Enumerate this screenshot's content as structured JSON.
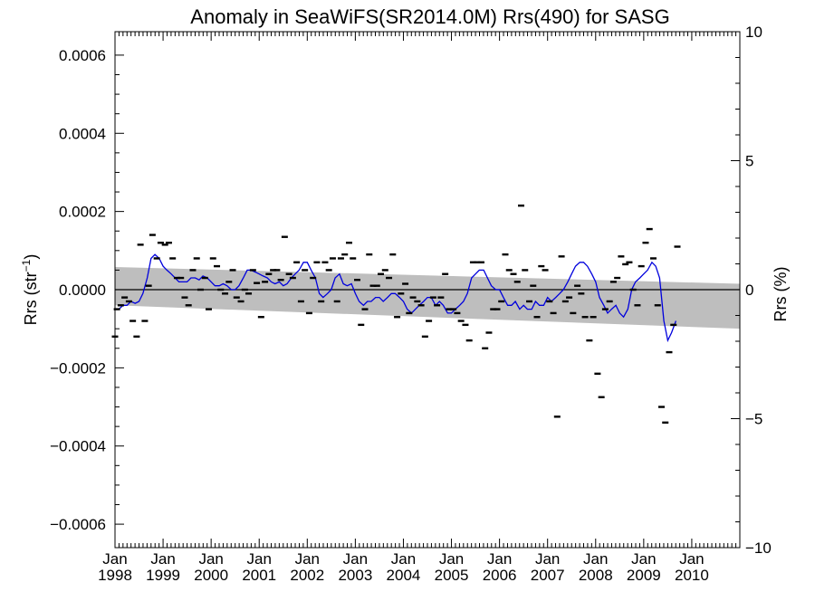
{
  "chart_data": {
    "type": "scatter",
    "title": "Anomaly in SeaWiFS(SR2014.0M) Rrs(490) for SASG",
    "ylabel_left": {
      "main": "Rrs (str",
      "sup": "−1",
      "close": ")"
    },
    "ylabel_right": "Rrs (%)",
    "xlim": [
      1998.0,
      2011.0
    ],
    "ylim_left": [
      -0.00066,
      0.00066
    ],
    "ylim_right": [
      -10,
      10
    ],
    "left_ticks": [
      {
        "value": 0.0006,
        "label": "0.0006"
      },
      {
        "value": 0.0004,
        "label": "0.0004"
      },
      {
        "value": 0.0002,
        "label": "0.0002"
      },
      {
        "value": 0.0,
        "label": "0.0000"
      },
      {
        "value": -0.0002,
        "label": "−0.0002"
      },
      {
        "value": -0.0004,
        "label": "−0.0004"
      },
      {
        "value": -0.0006,
        "label": "−0.0006"
      }
    ],
    "right_ticks": [
      {
        "value": 10,
        "label": "10"
      },
      {
        "value": 5,
        "label": "5"
      },
      {
        "value": 0,
        "label": "0"
      },
      {
        "value": -5,
        "label": "−5"
      },
      {
        "value": -10,
        "label": "−10"
      }
    ],
    "x_ticks": [
      {
        "value": 1998,
        "month": "Jan",
        "year": "1998"
      },
      {
        "value": 1999,
        "month": "Jan",
        "year": "1999"
      },
      {
        "value": 2000,
        "month": "Jan",
        "year": "2000"
      },
      {
        "value": 2001,
        "month": "Jan",
        "year": "2001"
      },
      {
        "value": 2002,
        "month": "Jan",
        "year": "2002"
      },
      {
        "value": 2003,
        "month": "Jan",
        "year": "2003"
      },
      {
        "value": 2004,
        "month": "Jan",
        "year": "2004"
      },
      {
        "value": 2005,
        "month": "Jan",
        "year": "2005"
      },
      {
        "value": 2006,
        "month": "Jan",
        "year": "2006"
      },
      {
        "value": 2007,
        "month": "Jan",
        "year": "2007"
      },
      {
        "value": 2008,
        "month": "Jan",
        "year": "2008"
      },
      {
        "value": 2009,
        "month": "Jan",
        "year": "2009"
      },
      {
        "value": 2010,
        "month": "Jan",
        "year": "2010"
      }
    ],
    "trend_band": {
      "x": [
        1998.0,
        2011.0
      ],
      "upper": [
        5.8e-05,
        1.5e-05
      ],
      "lower": [
        -4e-05,
        -0.0001
      ],
      "color": "#bebebe"
    },
    "zero_line": 0.0,
    "monthly_anomaly": {
      "color": "#000000",
      "marker": "short horizontal bar",
      "points": [
        [
          1998.0,
          -0.00012
        ],
        [
          1998.04,
          -5e-05
        ],
        [
          1998.12,
          -4e-05
        ],
        [
          1998.2,
          -2e-05
        ],
        [
          1998.29,
          -3e-05
        ],
        [
          1998.37,
          -8e-05
        ],
        [
          1998.45,
          -0.00012
        ],
        [
          1998.53,
          0.000115
        ],
        [
          1998.62,
          -8e-05
        ],
        [
          1998.7,
          1e-05
        ],
        [
          1998.78,
          0.00014
        ],
        [
          1998.87,
          8e-05
        ],
        [
          1998.95,
          0.00012
        ],
        [
          1999.04,
          0.000115
        ],
        [
          1999.12,
          0.00012
        ],
        [
          1999.2,
          8e-05
        ],
        [
          1999.29,
          3e-05
        ],
        [
          1999.37,
          3e-05
        ],
        [
          1999.45,
          -2e-05
        ],
        [
          1999.53,
          -4e-05
        ],
        [
          1999.62,
          5e-05
        ],
        [
          1999.7,
          8e-05
        ],
        [
          1999.78,
          0.0
        ],
        [
          1999.87,
          3e-05
        ],
        [
          1999.95,
          -5e-05
        ],
        [
          2000.04,
          8e-05
        ],
        [
          2000.12,
          6e-05
        ],
        [
          2000.2,
          0.0
        ],
        [
          2000.29,
          -1e-05
        ],
        [
          2000.37,
          2e-05
        ],
        [
          2000.45,
          5e-05
        ],
        [
          2000.53,
          -2e-05
        ],
        [
          2000.62,
          -3e-05
        ],
        [
          2000.7,
          0.0
        ],
        [
          2000.78,
          -1e-05
        ],
        [
          2000.87,
          5e-05
        ],
        [
          2000.95,
          1.7e-05
        ],
        [
          2001.04,
          -7e-05
        ],
        [
          2001.12,
          2e-05
        ],
        [
          2001.2,
          4e-05
        ],
        [
          2001.29,
          5e-05
        ],
        [
          2001.37,
          5e-05
        ],
        [
          2001.45,
          2.5e-05
        ],
        [
          2001.53,
          0.000135
        ],
        [
          2001.62,
          4e-05
        ],
        [
          2001.7,
          3e-05
        ],
        [
          2001.78,
          7e-05
        ],
        [
          2001.87,
          -3e-05
        ],
        [
          2001.95,
          5e-05
        ],
        [
          2002.04,
          -6e-05
        ],
        [
          2002.12,
          3e-05
        ],
        [
          2002.2,
          7e-05
        ],
        [
          2002.29,
          -3e-05
        ],
        [
          2002.37,
          7e-05
        ],
        [
          2002.45,
          5e-05
        ],
        [
          2002.53,
          8e-05
        ],
        [
          2002.62,
          -3e-05
        ],
        [
          2002.7,
          8e-05
        ],
        [
          2002.78,
          9e-05
        ],
        [
          2002.87,
          0.00012
        ],
        [
          2002.95,
          8e-05
        ],
        [
          2003.04,
          2.5e-05
        ],
        [
          2003.12,
          -9e-05
        ],
        [
          2003.2,
          -5e-05
        ],
        [
          2003.29,
          9e-05
        ],
        [
          2003.37,
          1e-05
        ],
        [
          2003.45,
          1e-05
        ],
        [
          2003.53,
          4e-05
        ],
        [
          2003.62,
          5e-05
        ],
        [
          2003.7,
          3e-05
        ],
        [
          2003.78,
          9e-05
        ],
        [
          2003.87,
          -7e-05
        ],
        [
          2003.95,
          -1e-05
        ],
        [
          2004.04,
          1.5e-05
        ],
        [
          2004.12,
          -6e-05
        ],
        [
          2004.2,
          -2e-05
        ],
        [
          2004.29,
          -3e-05
        ],
        [
          2004.37,
          -4e-05
        ],
        [
          2004.45,
          -0.00012
        ],
        [
          2004.53,
          -8e-05
        ],
        [
          2004.62,
          -2e-05
        ],
        [
          2004.7,
          -4e-05
        ],
        [
          2004.78,
          -2e-05
        ],
        [
          2004.87,
          4e-05
        ],
        [
          2004.95,
          -5e-05
        ],
        [
          2005.04,
          -5e-05
        ],
        [
          2005.12,
          -6e-05
        ],
        [
          2005.2,
          -8e-05
        ],
        [
          2005.29,
          -9e-05
        ],
        [
          2005.37,
          -0.00013
        ],
        [
          2005.45,
          7e-05
        ],
        [
          2005.53,
          7e-05
        ],
        [
          2005.62,
          7e-05
        ],
        [
          2005.7,
          -0.00015
        ],
        [
          2005.78,
          -0.00011
        ],
        [
          2005.87,
          -5e-05
        ],
        [
          2005.95,
          -5e-05
        ],
        [
          2006.04,
          -3e-05
        ],
        [
          2006.12,
          9e-05
        ],
        [
          2006.2,
          5e-05
        ],
        [
          2006.29,
          4e-05
        ],
        [
          2006.37,
          2e-05
        ],
        [
          2006.45,
          0.000215
        ],
        [
          2006.53,
          5e-05
        ],
        [
          2006.62,
          -3e-05
        ],
        [
          2006.7,
          1e-05
        ],
        [
          2006.78,
          -7e-05
        ],
        [
          2006.87,
          6e-05
        ],
        [
          2006.95,
          5e-05
        ],
        [
          2007.04,
          -3e-05
        ],
        [
          2007.12,
          -6e-05
        ],
        [
          2007.2,
          -0.000325
        ],
        [
          2007.29,
          8.5e-05
        ],
        [
          2007.37,
          -3e-05
        ],
        [
          2007.45,
          -2e-05
        ],
        [
          2007.53,
          -6e-05
        ],
        [
          2007.62,
          1e-05
        ],
        [
          2007.7,
          -1e-05
        ],
        [
          2007.78,
          -7e-05
        ],
        [
          2007.87,
          -0.00013
        ],
        [
          2007.95,
          -7e-05
        ],
        [
          2008.04,
          -0.000215
        ],
        [
          2008.12,
          -0.000275
        ],
        [
          2008.2,
          -5e-05
        ],
        [
          2008.29,
          -3e-05
        ],
        [
          2008.37,
          2e-05
        ],
        [
          2008.45,
          3e-05
        ],
        [
          2008.53,
          8.5e-05
        ],
        [
          2008.62,
          6.5e-05
        ],
        [
          2008.7,
          7e-05
        ],
        [
          2008.78,
          0.0
        ],
        [
          2008.87,
          -4e-05
        ],
        [
          2008.95,
          6e-05
        ],
        [
          2009.04,
          0.00012
        ],
        [
          2009.12,
          0.000155
        ],
        [
          2009.2,
          8e-05
        ],
        [
          2009.29,
          -4e-05
        ],
        [
          2009.37,
          -0.0003
        ],
        [
          2009.45,
          -0.00034
        ],
        [
          2009.53,
          -0.00016
        ],
        [
          2009.62,
          -9e-05
        ],
        [
          2009.7,
          0.00011
        ]
      ]
    },
    "running_mean": {
      "color": "#0000dd",
      "x": [
        1998.0,
        1998.08,
        1998.17,
        1998.25,
        1998.33,
        1998.42,
        1998.5,
        1998.58,
        1998.67,
        1998.75,
        1998.83,
        1998.92,
        1999.0,
        1999.08,
        1999.17,
        1999.25,
        1999.33,
        1999.42,
        1999.5,
        1999.58,
        1999.67,
        1999.75,
        1999.83,
        1999.92,
        2000.0,
        2000.08,
        2000.17,
        2000.25,
        2000.33,
        2000.42,
        2000.5,
        2000.58,
        2000.67,
        2000.75,
        2000.83,
        2000.92,
        2001.0,
        2001.08,
        2001.17,
        2001.25,
        2001.33,
        2001.42,
        2001.5,
        2001.58,
        2001.67,
        2001.75,
        2001.83,
        2001.92,
        2002.0,
        2002.08,
        2002.17,
        2002.25,
        2002.33,
        2002.42,
        2002.5,
        2002.58,
        2002.67,
        2002.75,
        2002.83,
        2002.92,
        2003.0,
        2003.08,
        2003.17,
        2003.25,
        2003.33,
        2003.42,
        2003.5,
        2003.58,
        2003.67,
        2003.75,
        2003.83,
        2003.92,
        2004.0,
        2004.08,
        2004.17,
        2004.25,
        2004.33,
        2004.42,
        2004.5,
        2004.58,
        2004.67,
        2004.75,
        2004.83,
        2004.92,
        2005.0,
        2005.08,
        2005.17,
        2005.25,
        2005.33,
        2005.42,
        2005.5,
        2005.58,
        2005.67,
        2005.75,
        2005.83,
        2005.92,
        2006.0,
        2006.08,
        2006.17,
        2006.25,
        2006.33,
        2006.42,
        2006.5,
        2006.58,
        2006.67,
        2006.75,
        2006.83,
        2006.92,
        2007.0,
        2007.08,
        2007.17,
        2007.25,
        2007.33,
        2007.42,
        2007.5,
        2007.58,
        2007.67,
        2007.75,
        2007.83,
        2007.92,
        2008.0,
        2008.08,
        2008.17,
        2008.25,
        2008.33,
        2008.42,
        2008.5,
        2008.58,
        2008.67,
        2008.75,
        2008.83,
        2008.92,
        2009.0,
        2009.08,
        2009.17,
        2009.25,
        2009.33,
        2009.42,
        2009.5,
        2009.58,
        2009.67
      ],
      "y": [
        -5e-05,
        -5e-05,
        -4e-05,
        -4e-05,
        -3e-05,
        -3.5e-05,
        -3e-05,
        -1e-05,
        3e-05,
        8e-05,
        9e-05,
        8e-05,
        6e-05,
        5e-05,
        4e-05,
        3e-05,
        2e-05,
        2e-05,
        2e-05,
        3e-05,
        3e-05,
        2.5e-05,
        3.5e-05,
        3e-05,
        2e-05,
        1e-05,
        1e-05,
        1.5e-05,
        1e-05,
        0.0,
        0.0,
        1e-05,
        3e-05,
        5e-05,
        5e-05,
        4.5e-05,
        4e-05,
        3.5e-05,
        3e-05,
        2e-05,
        1.5e-05,
        2e-05,
        1e-05,
        1.5e-05,
        3e-05,
        4e-05,
        5e-05,
        7e-05,
        7e-05,
        5e-05,
        3e-05,
        -1e-05,
        -2e-05,
        -1e-05,
        0.0,
        3e-05,
        4e-05,
        1.5e-05,
        1e-05,
        1.5e-05,
        -1e-05,
        -3e-05,
        -4e-05,
        -3e-05,
        -3e-05,
        -2e-05,
        -2e-05,
        -3e-05,
        -2e-05,
        -1e-05,
        -1e-05,
        -2e-05,
        -3e-05,
        -5e-05,
        -6e-05,
        -5e-05,
        -4e-05,
        -3e-05,
        -2e-05,
        -2e-05,
        -4e-05,
        -3e-05,
        -4e-05,
        -6e-05,
        -6e-05,
        -5e-05,
        -4e-05,
        -3e-05,
        -1e-05,
        3e-05,
        4e-05,
        5e-05,
        5e-05,
        3e-05,
        1e-05,
        0.0,
        0.0,
        -2e-05,
        -4e-05,
        -4e-05,
        -3e-05,
        -5e-05,
        -4e-05,
        -5e-05,
        -5e-05,
        -3e-05,
        -4e-05,
        -4e-05,
        -2e-05,
        -3e-05,
        -2e-05,
        -1e-05,
        0.0,
        2e-05,
        4e-05,
        6e-05,
        7e-05,
        7e-05,
        6e-05,
        4e-05,
        2e-05,
        -2e-05,
        -4e-05,
        -6e-05,
        -5e-05,
        -4e-05,
        -6e-05,
        -7e-05,
        -5e-05,
        0.0,
        2e-05,
        3e-05,
        4e-05,
        5e-05,
        7e-05,
        6e-05,
        3e-05,
        -8e-05,
        -0.00013,
        -0.00011,
        -8e-05
      ]
    }
  }
}
